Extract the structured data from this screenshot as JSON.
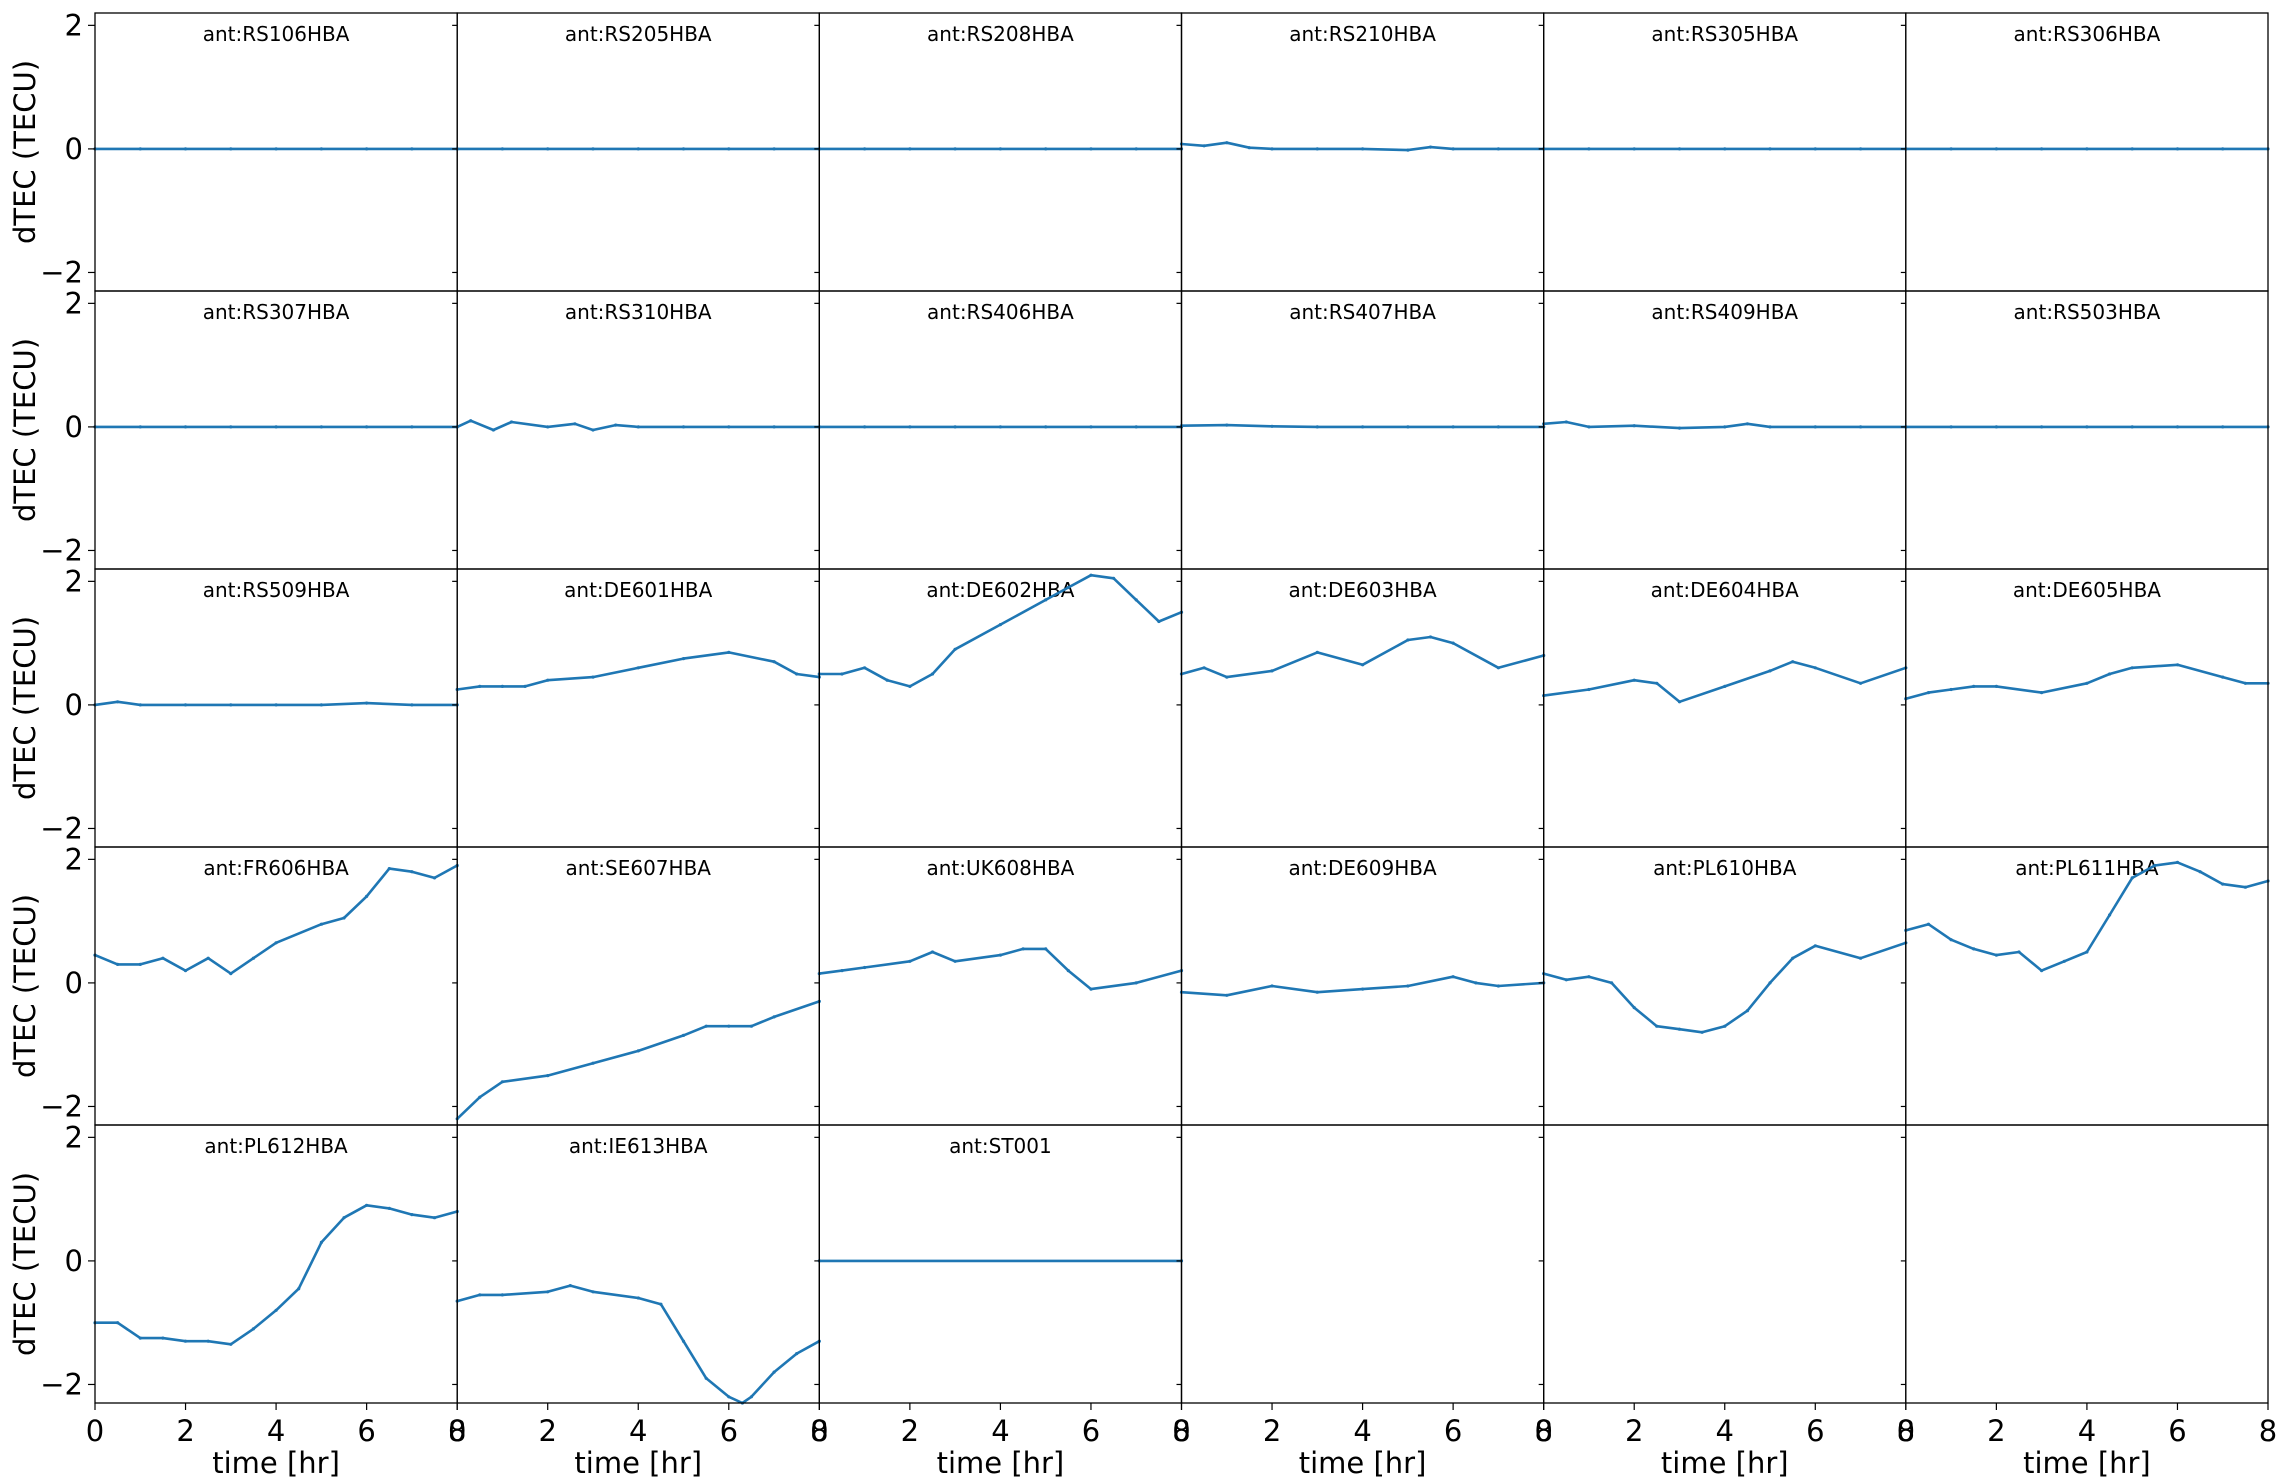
{
  "chart_data": {
    "type": "line",
    "layout": "grid of small multiples, 5 rows x 6 columns, shared axes",
    "xlabel": "time [hr]",
    "ylabel": "dTEC (TECU)",
    "xlim": [
      0,
      8
    ],
    "ylim": [
      -2.3,
      2.2
    ],
    "xticks": [
      0,
      2,
      4,
      6,
      8
    ],
    "yticks": [
      -2,
      0,
      2
    ],
    "grid": false,
    "legend": "none",
    "color": "#1f77b4",
    "panels": [
      {
        "title": "ant:RS106HBA",
        "x": [
          0,
          1,
          2,
          3,
          4,
          5,
          6,
          7,
          8
        ],
        "y": [
          0,
          0,
          0,
          0,
          0,
          0,
          0,
          0,
          0
        ]
      },
      {
        "title": "ant:RS205HBA",
        "x": [
          0,
          1,
          2,
          3,
          4,
          5,
          6,
          7,
          8
        ],
        "y": [
          0,
          0,
          0,
          0,
          0,
          0,
          0,
          0,
          0
        ]
      },
      {
        "title": "ant:RS208HBA",
        "x": [
          0,
          1,
          2,
          3,
          4,
          5,
          6,
          7,
          8
        ],
        "y": [
          0,
          0,
          0,
          0,
          0,
          0,
          0,
          0,
          0
        ]
      },
      {
        "title": "ant:RS210HBA",
        "x": [
          0,
          0.5,
          1,
          1.5,
          2,
          3,
          4,
          5,
          5.5,
          6,
          7,
          8
        ],
        "y": [
          0.08,
          0.05,
          0.1,
          0.02,
          0,
          0,
          0,
          -0.02,
          0.03,
          0,
          0,
          0
        ]
      },
      {
        "title": "ant:RS305HBA",
        "x": [
          0,
          1,
          2,
          3,
          4,
          5,
          6,
          7,
          8
        ],
        "y": [
          0,
          0,
          0,
          0,
          0,
          0,
          0,
          0,
          0
        ]
      },
      {
        "title": "ant:RS306HBA",
        "x": [
          0,
          1,
          2,
          3,
          4,
          5,
          6,
          7,
          8
        ],
        "y": [
          0,
          0,
          0,
          0,
          0,
          0,
          0,
          0,
          0
        ]
      },
      {
        "title": "ant:RS307HBA",
        "x": [
          0,
          1,
          2,
          3,
          4,
          5,
          6,
          7,
          8
        ],
        "y": [
          0,
          0,
          0,
          0,
          0,
          0,
          0,
          0,
          0
        ]
      },
      {
        "title": "ant:RS310HBA",
        "x": [
          0,
          0.3,
          0.8,
          1.2,
          2,
          2.6,
          3,
          3.5,
          4,
          5,
          6,
          7,
          8
        ],
        "y": [
          0,
          0.1,
          -0.05,
          0.08,
          0,
          0.05,
          -0.05,
          0.03,
          0,
          0,
          0,
          0,
          0
        ]
      },
      {
        "title": "ant:RS406HBA",
        "x": [
          0,
          1,
          2,
          3,
          4,
          5,
          6,
          7,
          8
        ],
        "y": [
          0,
          0,
          0,
          0,
          0,
          0,
          0,
          0,
          0
        ]
      },
      {
        "title": "ant:RS407HBA",
        "x": [
          0,
          1,
          2,
          3,
          4,
          5,
          6,
          7,
          8
        ],
        "y": [
          0.02,
          0.03,
          0.01,
          0,
          0,
          0,
          0,
          0,
          0
        ]
      },
      {
        "title": "ant:RS409HBA",
        "x": [
          0,
          0.5,
          1,
          2,
          3,
          4,
          4.5,
          5,
          6,
          7,
          8
        ],
        "y": [
          0.05,
          0.08,
          0,
          0.02,
          -0.02,
          0,
          0.05,
          0,
          0,
          0,
          0
        ]
      },
      {
        "title": "ant:RS503HBA",
        "x": [
          0,
          1,
          2,
          3,
          4,
          5,
          6,
          7,
          8
        ],
        "y": [
          0,
          0,
          0,
          0,
          0,
          0,
          0,
          0,
          0
        ]
      },
      {
        "title": "ant:RS509HBA",
        "x": [
          0,
          0.5,
          1,
          2,
          3,
          4,
          5,
          6,
          7,
          8
        ],
        "y": [
          0,
          0.05,
          0,
          0,
          0,
          0,
          0,
          0.03,
          0,
          0
        ]
      },
      {
        "title": "ant:DE601HBA",
        "x": [
          0,
          0.5,
          1,
          1.5,
          2,
          3,
          4,
          5,
          6,
          7,
          7.5,
          8
        ],
        "y": [
          0.25,
          0.3,
          0.3,
          0.3,
          0.4,
          0.45,
          0.6,
          0.75,
          0.85,
          0.7,
          0.5,
          0.45
        ]
      },
      {
        "title": "ant:DE602HBA",
        "x": [
          0,
          0.5,
          1,
          1.5,
          2,
          2.5,
          3,
          4,
          5,
          5.5,
          6,
          6.5,
          7,
          7.5,
          8
        ],
        "y": [
          0.5,
          0.5,
          0.6,
          0.4,
          0.3,
          0.5,
          0.9,
          1.3,
          1.7,
          1.9,
          2.1,
          2.05,
          1.7,
          1.35,
          1.5
        ]
      },
      {
        "title": "ant:DE603HBA",
        "x": [
          0,
          0.5,
          1,
          2,
          3,
          4,
          5,
          5.5,
          6,
          7,
          8
        ],
        "y": [
          0.5,
          0.6,
          0.45,
          0.55,
          0.85,
          0.65,
          1.05,
          1.1,
          1.0,
          0.6,
          0.8
        ]
      },
      {
        "title": "ant:DE604HBA",
        "x": [
          0,
          1,
          2,
          2.5,
          3,
          4,
          5,
          5.5,
          6,
          7,
          8
        ],
        "y": [
          0.15,
          0.25,
          0.4,
          0.35,
          0.05,
          0.3,
          0.55,
          0.7,
          0.6,
          0.35,
          0.6
        ]
      },
      {
        "title": "ant:DE605HBA",
        "x": [
          0,
          0.5,
          1,
          1.5,
          2,
          3,
          4,
          4.5,
          5,
          6,
          7,
          7.5,
          8
        ],
        "y": [
          0.1,
          0.2,
          0.25,
          0.3,
          0.3,
          0.2,
          0.35,
          0.5,
          0.6,
          0.65,
          0.45,
          0.35,
          0.35
        ]
      },
      {
        "title": "ant:FR606HBA",
        "x": [
          0,
          0.5,
          1,
          1.5,
          2,
          2.5,
          3,
          3.5,
          4,
          5,
          5.5,
          6,
          6.5,
          7,
          7.5,
          8
        ],
        "y": [
          0.45,
          0.3,
          0.3,
          0.4,
          0.2,
          0.4,
          0.15,
          0.4,
          0.65,
          0.95,
          1.05,
          1.4,
          1.85,
          1.8,
          1.7,
          1.9
        ]
      },
      {
        "title": "ant:SE607HBA",
        "x": [
          0,
          0.5,
          1,
          2,
          3,
          4,
          5,
          5.5,
          6,
          6.5,
          7,
          8
        ],
        "y": [
          -2.2,
          -1.85,
          -1.6,
          -1.5,
          -1.3,
          -1.1,
          -0.85,
          -0.7,
          -0.7,
          -0.7,
          -0.55,
          -0.3
        ]
      },
      {
        "title": "ant:UK608HBA",
        "x": [
          0,
          0.5,
          1,
          2,
          2.5,
          3,
          4,
          4.5,
          5,
          5.5,
          6,
          7,
          8
        ],
        "y": [
          0.15,
          0.2,
          0.25,
          0.35,
          0.5,
          0.35,
          0.45,
          0.55,
          0.55,
          0.2,
          -0.1,
          0,
          0.2
        ]
      },
      {
        "title": "ant:DE609HBA",
        "x": [
          0,
          1,
          2,
          3,
          4,
          5,
          6,
          6.5,
          7,
          8
        ],
        "y": [
          -0.15,
          -0.2,
          -0.05,
          -0.15,
          -0.1,
          -0.05,
          0.1,
          0,
          -0.05,
          0
        ]
      },
      {
        "title": "ant:PL610HBA",
        "x": [
          0,
          0.5,
          1,
          1.5,
          2,
          2.5,
          3,
          3.5,
          4,
          4.5,
          5,
          5.5,
          6,
          7,
          8
        ],
        "y": [
          0.15,
          0.05,
          0.1,
          0,
          -0.4,
          -0.7,
          -0.75,
          -0.8,
          -0.7,
          -0.45,
          0,
          0.4,
          0.6,
          0.4,
          0.65
        ]
      },
      {
        "title": "ant:PL611HBA",
        "x": [
          0,
          0.5,
          1,
          1.5,
          2,
          2.5,
          3,
          3.5,
          4,
          4.5,
          5,
          5.5,
          6,
          6.5,
          7,
          7.5,
          8
        ],
        "y": [
          0.85,
          0.95,
          0.7,
          0.55,
          0.45,
          0.5,
          0.2,
          0.35,
          0.5,
          1.1,
          1.7,
          1.9,
          1.95,
          1.8,
          1.6,
          1.55,
          1.65
        ]
      },
      {
        "title": "ant:PL612HBA",
        "x": [
          0,
          0.5,
          1,
          1.5,
          2,
          2.5,
          3,
          3.5,
          4,
          4.5,
          5,
          5.5,
          6,
          6.5,
          7,
          7.5,
          8
        ],
        "y": [
          -1.0,
          -1.0,
          -1.25,
          -1.25,
          -1.3,
          -1.3,
          -1.35,
          -1.1,
          -0.8,
          -0.45,
          0.3,
          0.7,
          0.9,
          0.85,
          0.75,
          0.7,
          0.8
        ]
      },
      {
        "title": "ant:IE613HBA",
        "x": [
          0,
          0.5,
          1,
          2,
          2.5,
          3,
          4,
          4.5,
          5,
          5.5,
          6,
          6.3,
          6.5,
          7,
          7.5,
          8
        ],
        "y": [
          -0.65,
          -0.55,
          -0.55,
          -0.5,
          -0.4,
          -0.5,
          -0.6,
          -0.7,
          -1.3,
          -1.9,
          -2.2,
          -2.3,
          -2.2,
          -1.8,
          -1.5,
          -1.3
        ]
      },
      {
        "title": "ant:ST001",
        "x": [
          0,
          8
        ],
        "y": [
          0,
          0
        ]
      },
      null,
      null,
      null
    ]
  }
}
